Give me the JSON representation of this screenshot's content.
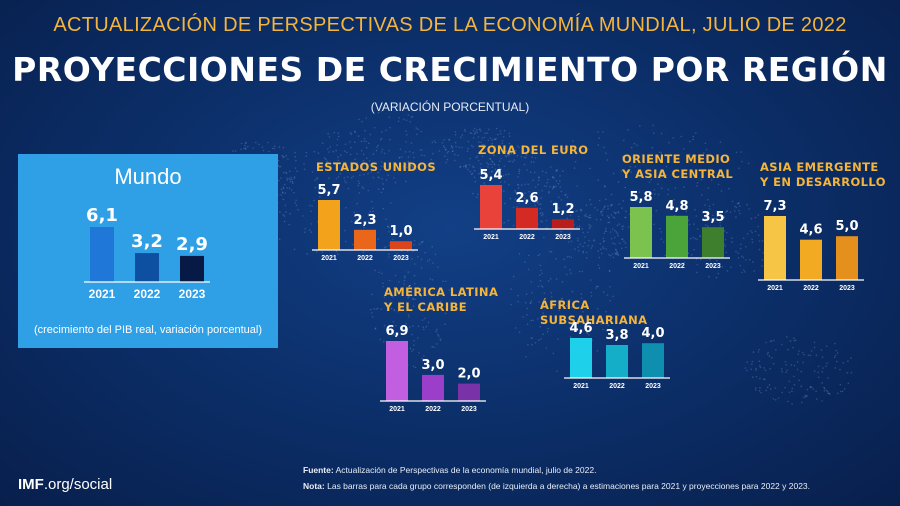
{
  "header": {
    "top_title": "ACTUALIZACIÓN DE PERSPECTIVAS DE LA ECONOMÍA MUNDIAL, JULIO DE 2022",
    "main_title": "PROYECCIONES DE CRECIMIENTO POR REGIÓN",
    "subtitle": "(VARIACIÓN PORCENTUAL)"
  },
  "colors": {
    "title_accent": "#f5b43a",
    "region_title": "#f5b43a",
    "background": "#0b2d66",
    "world_box": "#2f9fe6"
  },
  "chart_data": [
    {
      "id": "mundo",
      "type": "bar",
      "title": "Mundo",
      "note": "(crecimiento del PIB real, variación porcentual)",
      "categories": [
        "2021",
        "2022",
        "2023"
      ],
      "values": [
        6.1,
        3.2,
        2.9
      ],
      "labels": [
        "6,1",
        "3,2",
        "2,9"
      ],
      "colors": [
        "#1f77d8",
        "#0d4fa0",
        "#071a45"
      ]
    },
    {
      "id": "estados-unidos",
      "type": "bar",
      "title_lines": [
        "ESTADOS UNIDOS"
      ],
      "categories": [
        "2021",
        "2022",
        "2023"
      ],
      "values": [
        5.7,
        2.3,
        1.0
      ],
      "labels": [
        "5,7",
        "2,3",
        "1,0"
      ],
      "colors": [
        "#f3a21b",
        "#e9661b",
        "#d9461a"
      ]
    },
    {
      "id": "zona-del-euro",
      "type": "bar",
      "title_lines": [
        "ZONA DEL EURO"
      ],
      "categories": [
        "2021",
        "2022",
        "2023"
      ],
      "values": [
        5.4,
        2.6,
        1.2
      ],
      "labels": [
        "5,4",
        "2,6",
        "1,2"
      ],
      "colors": [
        "#e8423a",
        "#d42a24",
        "#b81f1c"
      ]
    },
    {
      "id": "oriente-medio",
      "type": "bar",
      "title_lines": [
        "ORIENTE MEDIO",
        "Y ASIA CENTRAL"
      ],
      "categories": [
        "2021",
        "2022",
        "2023"
      ],
      "values": [
        5.8,
        4.8,
        3.5
      ],
      "labels": [
        "5,8",
        "4,8",
        "3,5"
      ],
      "colors": [
        "#7cc24f",
        "#4aa43a",
        "#3d7f2c"
      ]
    },
    {
      "id": "asia-emergente",
      "type": "bar",
      "title_lines": [
        "ASIA EMERGENTE",
        "Y EN DESARROLLO"
      ],
      "categories": [
        "2021",
        "2022",
        "2023"
      ],
      "values": [
        7.3,
        4.6,
        5.0
      ],
      "labels": [
        "7,3",
        "4,6",
        "5,0"
      ],
      "colors": [
        "#f7c545",
        "#f2aa22",
        "#e58f1c"
      ]
    },
    {
      "id": "america-latina",
      "type": "bar",
      "title_lines": [
        "AMÉRICA LATINA",
        "Y EL CARIBE"
      ],
      "categories": [
        "2021",
        "2022",
        "2023"
      ],
      "values": [
        6.9,
        3.0,
        2.0
      ],
      "labels": [
        "6,9",
        "3,0",
        "2,0"
      ],
      "colors": [
        "#c25ee0",
        "#9b3ec9",
        "#7a32a8"
      ]
    },
    {
      "id": "africa-subsahariana",
      "type": "bar",
      "title_lines": [
        "ÁFRICA SUBSAHARIANA"
      ],
      "categories": [
        "2021",
        "2022",
        "2023"
      ],
      "values": [
        4.6,
        3.8,
        4.0
      ],
      "labels": [
        "4,6",
        "3,8",
        "4,0"
      ],
      "colors": [
        "#1fd0ea",
        "#14aec8",
        "#0f8fb0"
      ]
    }
  ],
  "footer": {
    "brand_bold": "IMF",
    "brand_rest": ".org/social",
    "source_label": "Fuente:",
    "source_text": "Actualización de Perspectivas de la economía mundial, julio de 2022.",
    "note_label": "Nota:",
    "note_text": "Las barras para cada grupo corresponden (de izquierda a derecha) a estimaciones para 2021 y proyecciones para 2022 y 2023."
  }
}
